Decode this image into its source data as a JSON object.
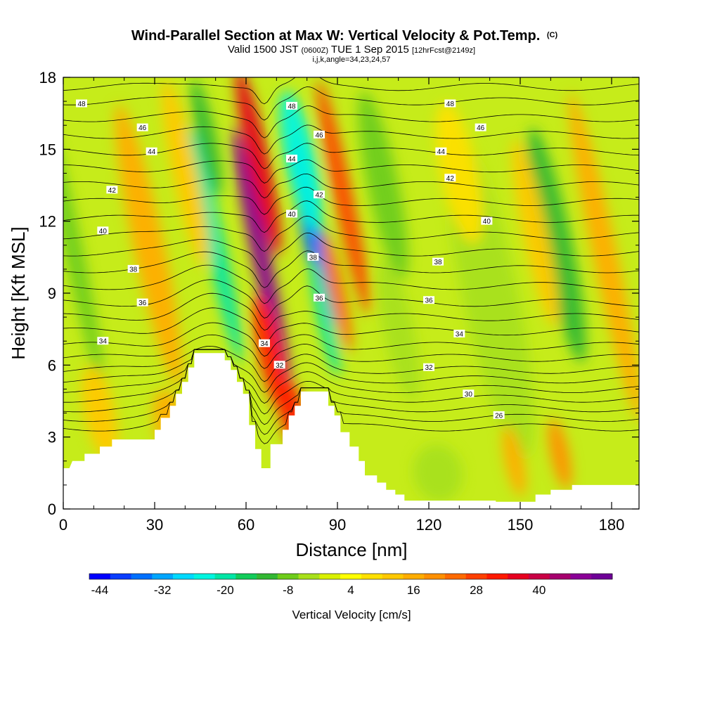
{
  "chart_data": {
    "type": "heatmap",
    "title": "Wind-Parallel Section at Max W: Vertical Velocity & Pot.Temp.",
    "title_mark": "(C)",
    "subtitle_main": "Valid 1500 JST",
    "subtitle_zulu": "(0600Z)",
    "subtitle_date": "TUE 1 Sep 2015",
    "subtitle_fcst": "[12hrFcst@2149z]",
    "subtitle2": "i,j,k,angle=34,23,24,57",
    "xlabel": "Distance [nm]",
    "ylabel": "Height [Kft MSL]",
    "xlim": [
      0,
      189
    ],
    "ylim": [
      0,
      18
    ],
    "x_ticks": [
      {
        "value": 0,
        "label": "0"
      },
      {
        "value": 30,
        "label": "30"
      },
      {
        "value": 60,
        "label": "60"
      },
      {
        "value": 90,
        "label": "90"
      },
      {
        "value": 120,
        "label": "120"
      },
      {
        "value": 150,
        "label": "150"
      },
      {
        "value": 180,
        "label": "180"
      }
    ],
    "y_ticks": [
      {
        "value": 0,
        "label": "0"
      },
      {
        "value": 3,
        "label": "3"
      },
      {
        "value": 6,
        "label": "6"
      },
      {
        "value": 9,
        "label": "9"
      },
      {
        "value": 12,
        "label": "12"
      },
      {
        "value": 15,
        "label": "15"
      },
      {
        "value": 18,
        "label": "18"
      }
    ],
    "colorbar": {
      "label": "Vertical Velocity [cm/s]",
      "ticks": [
        "-44",
        "-32",
        "-20",
        "-8",
        "4",
        "16",
        "28",
        "40"
      ],
      "colors": [
        "#0000ff",
        "#0a3dff",
        "#0070ff",
        "#00a6ff",
        "#00d9ff",
        "#00f5e0",
        "#00e6a6",
        "#12cc5a",
        "#33b833",
        "#6ecc1a",
        "#a8e01a",
        "#d9f000",
        "#ffff00",
        "#ffe000",
        "#ffc800",
        "#ffad00",
        "#ff9000",
        "#ff6a00",
        "#ff4000",
        "#ff1a00",
        "#e60020",
        "#c80045",
        "#a6006e",
        "#8a0096",
        "#6e0096"
      ]
    },
    "background_color": "#c6ec1a",
    "velocity_features": [
      {
        "x": 65,
        "y": 10.5,
        "value": 44,
        "rx": 3.0,
        "ry": 5.5
      },
      {
        "x": 64,
        "y": 14.5,
        "value": 32,
        "rx": 3.5,
        "ry": 4
      },
      {
        "x": 68,
        "y": 6.5,
        "value": 28,
        "rx": 4,
        "ry": 2.5
      },
      {
        "x": 75,
        "y": 4.0,
        "value": 28,
        "rx": 4,
        "ry": 1.5
      },
      {
        "x": 82,
        "y": 11.5,
        "value": -40,
        "rx": 3.5,
        "ry": 4
      },
      {
        "x": 78,
        "y": 14.5,
        "value": -28,
        "rx": 5,
        "ry": 3
      },
      {
        "x": 86,
        "y": 8.0,
        "value": -24,
        "rx": 2.5,
        "ry": 2.5
      },
      {
        "x": 92,
        "y": 13.0,
        "value": 24,
        "rx": 3,
        "ry": 5
      },
      {
        "x": 90,
        "y": 9.0,
        "value": 20,
        "rx": 2.5,
        "ry": 2.5
      },
      {
        "x": 50,
        "y": 11.0,
        "value": -24,
        "rx": 3,
        "ry": 5
      },
      {
        "x": 47,
        "y": 15.5,
        "value": -16,
        "rx": 3,
        "ry": 2.5
      },
      {
        "x": 3,
        "y": 11.0,
        "value": -12,
        "rx": 3,
        "ry": 6
      },
      {
        "x": 28,
        "y": 11.0,
        "value": 12,
        "rx": 5,
        "ry": 6
      },
      {
        "x": 40,
        "y": 14.0,
        "value": 8,
        "rx": 4,
        "ry": 4
      },
      {
        "x": 105,
        "y": 13.5,
        "value": -12,
        "rx": 5,
        "ry": 4
      },
      {
        "x": 110,
        "y": 7.5,
        "value": -8,
        "rx": 5,
        "ry": 3
      },
      {
        "x": 140,
        "y": 9.0,
        "value": -8,
        "rx": 9,
        "ry": 7
      },
      {
        "x": 162,
        "y": 11.0,
        "value": -16,
        "rx": 5,
        "ry": 5
      },
      {
        "x": 178,
        "y": 10.5,
        "value": 12,
        "rx": 4,
        "ry": 7
      },
      {
        "x": 155,
        "y": 11.5,
        "value": 8,
        "rx": 4,
        "ry": 4
      },
      {
        "x": 130,
        "y": 14.0,
        "value": 4,
        "rx": 6,
        "ry": 3
      },
      {
        "x": 163,
        "y": 2.3,
        "value": 16,
        "rx": 3,
        "ry": 1.5
      },
      {
        "x": 148,
        "y": 2.0,
        "value": 12,
        "rx": 3,
        "ry": 1.5
      },
      {
        "x": 123,
        "y": 1.5,
        "value": -6,
        "rx": 8,
        "ry": 1.2
      },
      {
        "x": 35,
        "y": 3.5,
        "value": 12,
        "rx": 5,
        "ry": 1.5
      },
      {
        "x": 12,
        "y": 4.0,
        "value": 8,
        "rx": 5,
        "ry": 2
      }
    ],
    "theta_isolines": [
      {
        "value": 26,
        "base_y": 3.4
      },
      {
        "value": 27,
        "base_y": 3.8
      },
      {
        "value": 28,
        "base_y": 4.2
      },
      {
        "value": 29,
        "base_y": 4.6
      },
      {
        "value": 30,
        "base_y": 5.0
      },
      {
        "value": 31,
        "base_y": 5.4
      },
      {
        "value": 32,
        "base_y": 5.8
      },
      {
        "value": 33,
        "base_y": 6.3
      },
      {
        "value": 34,
        "base_y": 6.8
      },
      {
        "value": 35,
        "base_y": 7.4
      },
      {
        "value": 36,
        "base_y": 8.0
      },
      {
        "value": 37,
        "base_y": 8.6
      },
      {
        "value": 38,
        "base_y": 9.3
      },
      {
        "value": 39,
        "base_y": 10.0
      },
      {
        "value": 40,
        "base_y": 10.7
      },
      {
        "value": 41,
        "base_y": 11.4
      },
      {
        "value": 42,
        "base_y": 12.1
      },
      {
        "value": 43,
        "base_y": 12.8
      },
      {
        "value": 44,
        "base_y": 13.5
      },
      {
        "value": 45,
        "base_y": 14.2
      },
      {
        "value": 46,
        "base_y": 14.9
      },
      {
        "value": 47,
        "base_y": 15.6
      },
      {
        "value": 48,
        "base_y": 16.3
      },
      {
        "value": 49,
        "base_y": 17.0
      },
      {
        "value": 50,
        "base_y": 17.6
      }
    ],
    "contour_labels": [
      {
        "text": "48",
        "x": 6,
        "y": 16.9
      },
      {
        "text": "46",
        "x": 26,
        "y": 15.9
      },
      {
        "text": "44",
        "x": 29,
        "y": 14.9
      },
      {
        "text": "42",
        "x": 16,
        "y": 13.3
      },
      {
        "text": "40",
        "x": 13,
        "y": 11.6
      },
      {
        "text": "38",
        "x": 23,
        "y": 10.0
      },
      {
        "text": "36",
        "x": 26,
        "y": 8.6
      },
      {
        "text": "34",
        "x": 13,
        "y": 7.0
      },
      {
        "text": "48",
        "x": 75,
        "y": 16.8
      },
      {
        "text": "46",
        "x": 84,
        "y": 15.6
      },
      {
        "text": "44",
        "x": 75,
        "y": 14.6
      },
      {
        "text": "42",
        "x": 84,
        "y": 13.1
      },
      {
        "text": "40",
        "x": 75,
        "y": 12.3
      },
      {
        "text": "38",
        "x": 82,
        "y": 10.5
      },
      {
        "text": "36",
        "x": 84,
        "y": 8.8
      },
      {
        "text": "34",
        "x": 66,
        "y": 6.9
      },
      {
        "text": "32",
        "x": 71,
        "y": 6.0
      },
      {
        "text": "48",
        "x": 127,
        "y": 16.9
      },
      {
        "text": "46",
        "x": 137,
        "y": 15.9
      },
      {
        "text": "44",
        "x": 124,
        "y": 14.9
      },
      {
        "text": "42",
        "x": 127,
        "y": 13.8
      },
      {
        "text": "40",
        "x": 139,
        "y": 12.0
      },
      {
        "text": "38",
        "x": 123,
        "y": 10.3
      },
      {
        "text": "36",
        "x": 120,
        "y": 8.7
      },
      {
        "text": "34",
        "x": 130,
        "y": 7.3
      },
      {
        "text": "32",
        "x": 120,
        "y": 5.9
      },
      {
        "text": "30",
        "x": 133,
        "y": 4.8
      },
      {
        "text": "26",
        "x": 143,
        "y": 3.9
      }
    ],
    "terrain": [
      [
        0,
        1.7
      ],
      [
        2,
        1.7
      ],
      [
        3,
        2.0
      ],
      [
        7,
        2.0
      ],
      [
        7,
        2.3
      ],
      [
        12,
        2.3
      ],
      [
        12,
        2.6
      ],
      [
        16,
        2.6
      ],
      [
        16,
        2.9
      ],
      [
        30,
        2.9
      ],
      [
        30,
        3.3
      ],
      [
        32,
        3.3
      ],
      [
        32,
        3.8
      ],
      [
        35,
        3.8
      ],
      [
        35,
        4.3
      ],
      [
        37,
        4.3
      ],
      [
        37,
        4.8
      ],
      [
        39,
        4.8
      ],
      [
        39,
        5.3
      ],
      [
        41,
        5.3
      ],
      [
        41,
        5.9
      ],
      [
        43,
        5.9
      ],
      [
        43,
        6.5
      ],
      [
        53,
        6.5
      ],
      [
        53,
        6.2
      ],
      [
        55,
        6.2
      ],
      [
        55,
        5.8
      ],
      [
        57,
        5.8
      ],
      [
        57,
        5.3
      ],
      [
        59,
        5.3
      ],
      [
        59,
        4.8
      ],
      [
        61,
        4.8
      ],
      [
        61,
        3.5
      ],
      [
        63,
        3.5
      ],
      [
        63,
        2.5
      ],
      [
        65,
        2.5
      ],
      [
        65,
        1.7
      ],
      [
        68,
        1.7
      ],
      [
        68,
        2.7
      ],
      [
        72,
        2.7
      ],
      [
        72,
        3.3
      ],
      [
        74,
        3.3
      ],
      [
        74,
        3.9
      ],
      [
        76,
        3.9
      ],
      [
        76,
        4.3
      ],
      [
        78,
        4.3
      ],
      [
        78,
        4.9
      ],
      [
        87,
        4.9
      ],
      [
        87,
        4.3
      ],
      [
        89,
        4.3
      ],
      [
        89,
        3.9
      ],
      [
        91,
        3.9
      ],
      [
        91,
        3.2
      ],
      [
        94,
        3.2
      ],
      [
        94,
        2.6
      ],
      [
        97,
        2.6
      ],
      [
        97,
        2.0
      ],
      [
        99,
        2.0
      ],
      [
        99,
        1.4
      ],
      [
        103,
        1.4
      ],
      [
        103,
        1.1
      ],
      [
        106,
        1.1
      ],
      [
        106,
        0.8
      ],
      [
        109,
        0.8
      ],
      [
        109,
        0.6
      ],
      [
        112,
        0.6
      ],
      [
        112,
        0.35
      ],
      [
        142,
        0.35
      ],
      [
        142,
        0.3
      ],
      [
        155,
        0.3
      ],
      [
        155,
        0.6
      ],
      [
        160,
        0.6
      ],
      [
        160,
        0.8
      ],
      [
        167,
        0.8
      ],
      [
        167,
        1.0
      ],
      [
        189,
        1.0
      ],
      [
        189,
        0
      ],
      [
        0,
        0
      ]
    ]
  }
}
